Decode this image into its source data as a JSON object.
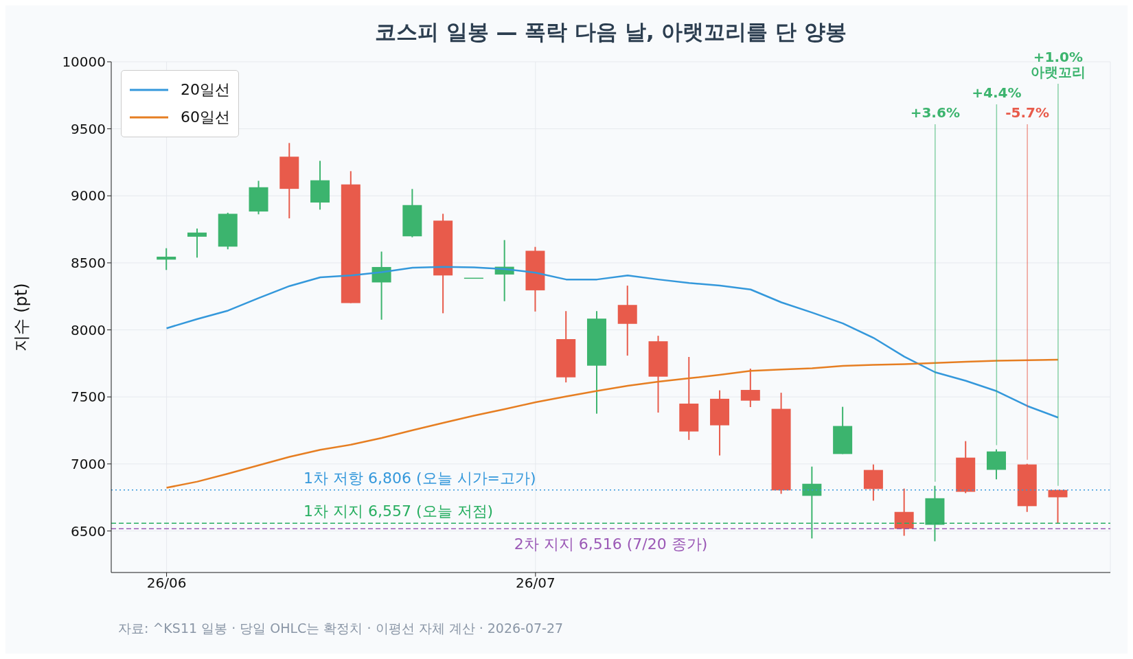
{
  "chart_data": {
    "type": "candlestick",
    "title": "코스피 일봉 — 폭락 다음 날, 아랫꼬리를 단 양봉",
    "ylabel": "지수 (pt)",
    "categories": [
      "26/06",
      null,
      null,
      null,
      null,
      null,
      null,
      null,
      null,
      null,
      null,
      null,
      "26/07",
      null,
      null,
      null,
      null,
      null,
      null,
      null,
      null,
      null,
      null,
      null,
      null,
      null,
      null,
      null,
      null,
      null
    ],
    "ylim": [
      6190,
      10000
    ],
    "yticks": [
      6500,
      7000,
      7500,
      8000,
      8500,
      9000,
      9500,
      10000
    ],
    "grid": true,
    "legend": "top left",
    "series": [
      {
        "type": "candlestick",
        "colors": [
          "#3cb46e",
          "#3cb46e",
          "#3cb46e",
          "#3cb46e",
          "#e85b4b",
          "#3cb46e",
          "#e85b4b",
          "#3cb46e",
          "#3cb46e",
          "#e85b4b",
          "#3cb46e",
          "#3cb46e",
          "#e85b4b",
          "#e85b4b",
          "#3cb46e",
          "#e85b4b",
          "#e85b4b",
          "#e85b4b",
          "#e85b4b",
          "#e85b4b",
          "#e85b4b",
          "#3cb46e",
          "#3cb46e",
          "#e85b4b",
          "#e85b4b",
          "#3cb46e",
          "#e85b4b",
          "#3cb46e",
          "#e85b4b",
          "#e85b4b"
        ],
        "ohlc": [
          [
            8524,
            8609,
            8447,
            8546
          ],
          [
            8695,
            8756,
            8539,
            8726
          ],
          [
            8621,
            8874,
            8601,
            8866
          ],
          [
            8883,
            9112,
            8862,
            9064
          ],
          [
            9292,
            9394,
            8832,
            9052
          ],
          [
            8950,
            9261,
            8897,
            9116
          ],
          [
            9085,
            9184,
            8200,
            8200
          ],
          [
            8354,
            8584,
            8076,
            8469
          ],
          [
            8698,
            9051,
            8691,
            8931
          ],
          [
            8815,
            8866,
            8124,
            8406
          ],
          [
            8389,
            8389,
            8389,
            8389
          ],
          [
            8413,
            8670,
            8214,
            8471
          ],
          [
            8590,
            8619,
            8137,
            8295
          ],
          [
            7931,
            8140,
            7608,
            7646
          ],
          [
            7733,
            8140,
            7375,
            8084
          ],
          [
            8186,
            8330,
            7808,
            8045
          ],
          [
            7915,
            7956,
            7383,
            7651
          ],
          [
            7450,
            7798,
            7179,
            7242
          ],
          [
            7486,
            7549,
            7063,
            7288
          ],
          [
            7552,
            7711,
            7424,
            7472
          ],
          [
            7411,
            7531,
            6777,
            6803
          ],
          [
            6762,
            6980,
            6444,
            6852
          ],
          [
            7074,
            7426,
            7074,
            7283
          ],
          [
            6955,
            6996,
            6726,
            6813
          ],
          [
            6642,
            6816,
            6464,
            6516
          ],
          [
            6546,
            6837,
            6423,
            6744
          ],
          [
            7047,
            7170,
            6782,
            6792
          ],
          [
            6956,
            7109,
            6885,
            7093
          ],
          [
            6996,
            7001,
            6642,
            6685
          ],
          [
            6806,
            6806,
            6557,
            6751
          ]
        ],
        "value_labels": [
          null,
          null,
          null,
          null,
          null,
          null,
          null,
          null,
          null,
          null,
          null,
          null,
          null,
          null,
          null,
          null,
          null,
          null,
          null,
          null,
          null,
          null,
          null,
          null,
          null,
          "+3.6%",
          null,
          "+4.4%",
          "-5.7%",
          "+1.0%\n아랫꼬리"
        ]
      },
      {
        "type": "line",
        "name": "20일선",
        "color": "#3498db",
        "values": [
          8012,
          8081,
          8144,
          8238,
          8327,
          8392,
          8406,
          8430,
          8464,
          8470,
          8466,
          8454,
          8427,
          8376,
          8376,
          8406,
          8376,
          8350,
          8330,
          8301,
          8205,
          8129,
          8048,
          7940,
          7800,
          7684,
          7620,
          7543,
          7432,
          7346
        ]
      },
      {
        "type": "line",
        "name": "60일선",
        "color": "#e67e22",
        "values": [
          6822,
          6868,
          6927,
          6990,
          7053,
          7105,
          7144,
          7194,
          7251,
          7306,
          7360,
          7409,
          7460,
          7503,
          7545,
          7583,
          7614,
          7639,
          7665,
          7694,
          7705,
          7714,
          7731,
          7739,
          7744,
          7753,
          7762,
          7770,
          7774,
          7777
        ]
      }
    ],
    "ref_lines": [
      {
        "axis": "y",
        "value": 6806,
        "label": "1차 저항 6,806 (오늘 시가=고가)",
        "color": "#3498db",
        "line_style": "dotted"
      },
      {
        "axis": "y",
        "value": 6557,
        "label": "1차 지지 6,557 (오늘 저점)",
        "color": "#27ae60",
        "line_style": "dashed"
      },
      {
        "axis": "y",
        "value": 6516,
        "label": "2차 지지 6,516 (7/20 종가)",
        "color": "#9b59b6",
        "line_style": "dashed"
      }
    ],
    "annotations": [
      "자료: ^KS11 일봉 · 당일 OHLC는 확정치 · 이평선 자체 계산 · 2026-07-27"
    ]
  }
}
